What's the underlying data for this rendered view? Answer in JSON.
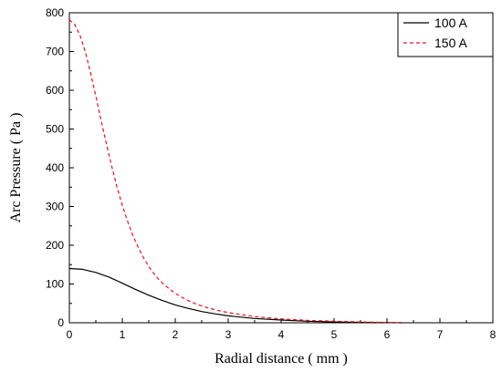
{
  "chart_data": {
    "type": "line",
    "xlabel": "Radial distance ( mm )",
    "ylabel": "Arc Pressure ( Pa )",
    "xlim": [
      0,
      8
    ],
    "ylim": [
      0,
      800
    ],
    "x_ticks": [
      "0",
      "1",
      "2",
      "3",
      "4",
      "5",
      "6",
      "7",
      "8"
    ],
    "y_ticks": [
      "0",
      "100",
      "200",
      "300",
      "400",
      "500",
      "600",
      "700",
      "800"
    ],
    "grid": false,
    "legend_position": "top-right",
    "series": [
      {
        "name": "100 A",
        "color": "#000000",
        "line_style": "solid",
        "x": [
          0,
          0.25,
          0.5,
          0.75,
          1.0,
          1.25,
          1.5,
          1.75,
          2.0,
          2.25,
          2.5,
          2.75,
          3.0,
          3.5,
          4.0,
          4.5,
          5.0,
          5.5,
          6.0,
          6.3
        ],
        "y": [
          140,
          138,
          130,
          118,
          102,
          86,
          71,
          58,
          46,
          37,
          29,
          23,
          18,
          11,
          7,
          4,
          2,
          1,
          0.5,
          0
        ]
      },
      {
        "name": "150 A",
        "color": "#e8141c",
        "line_style": "dashed",
        "x": [
          0,
          0.1,
          0.2,
          0.3,
          0.4,
          0.5,
          0.6,
          0.7,
          0.8,
          0.9,
          1.0,
          1.1,
          1.2,
          1.3,
          1.4,
          1.5,
          1.6,
          1.7,
          1.8,
          2.0,
          2.2,
          2.4,
          2.6,
          2.8,
          3.0,
          3.5,
          4.0,
          4.5,
          5.0,
          5.5,
          6.0,
          6.3
        ],
        "y": [
          782,
          770,
          742,
          700,
          645,
          585,
          522,
          461,
          404,
          350,
          303,
          262,
          225,
          195,
          168,
          145,
          126,
          110,
          97,
          76,
          60,
          48,
          39,
          32,
          26,
          16,
          10,
          6,
          4,
          2,
          1,
          0
        ]
      }
    ]
  }
}
